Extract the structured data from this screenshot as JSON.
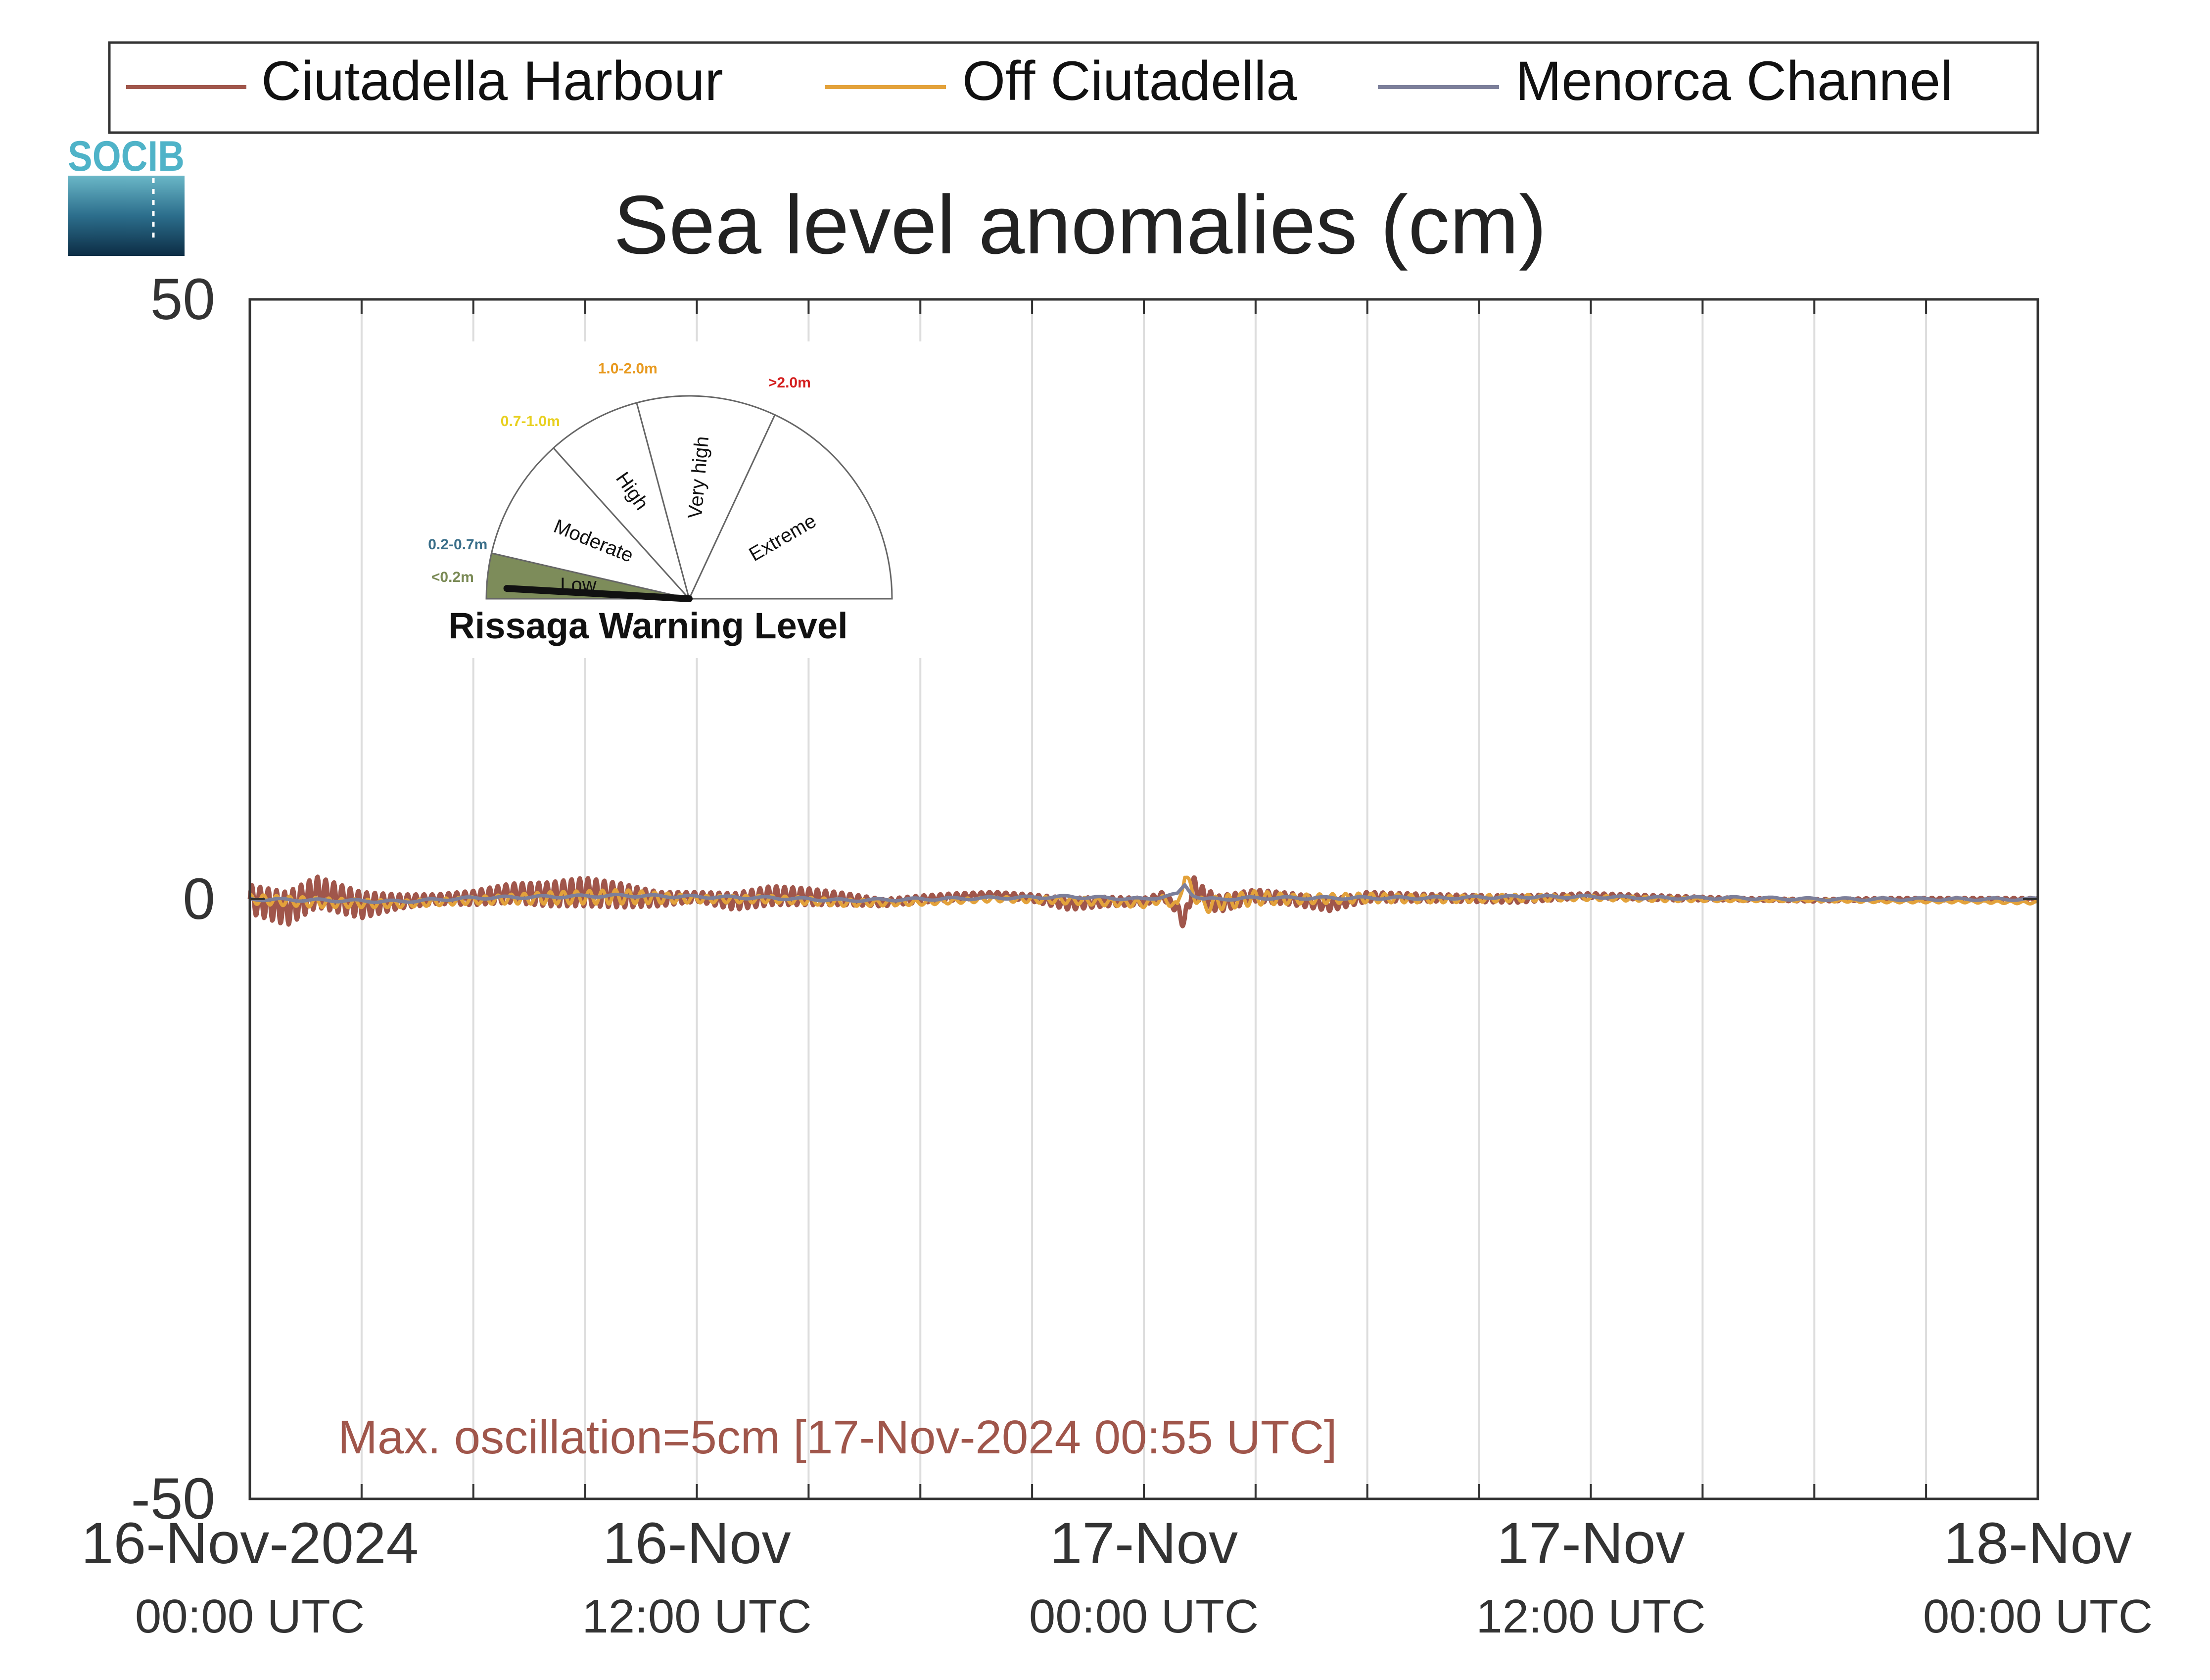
{
  "chart_data": {
    "type": "line",
    "title": "Sea level anomalies (cm)",
    "xlabel": "",
    "ylabel": "",
    "ylim": [
      -50,
      50
    ],
    "y_ticks": [
      50,
      0,
      -50
    ],
    "y_tick_labels": [
      "50",
      "0",
      "-50"
    ],
    "xlim": [
      "2024-11-16 00:00",
      "2024-11-18 00:00"
    ],
    "x_ticks": [
      {
        "t": 0,
        "date": "16-Nov-2024",
        "time": "00:00 UTC"
      },
      {
        "t": 12,
        "date": "16-Nov",
        "time": "12:00 UTC"
      },
      {
        "t": 24,
        "date": "17-Nov",
        "time": "00:00 UTC"
      },
      {
        "t": 36,
        "date": "17-Nov",
        "time": "12:00 UTC"
      },
      {
        "t": 48,
        "date": "18-Nov",
        "time": "00:00 UTC"
      }
    ],
    "grid": {
      "vertical": true,
      "horizontal": false
    },
    "legend_position": "top",
    "series": [
      {
        "name": "Ciutadella Harbour",
        "color": "#a0564b",
        "t": [
          0,
          1,
          1.8,
          3,
          4,
          5,
          6,
          7,
          8,
          9,
          10,
          11,
          12,
          13,
          14,
          15,
          16,
          17,
          18,
          19,
          20,
          21,
          22,
          23,
          24,
          24.5,
          24.9,
          25.1,
          25.3,
          25.6,
          26,
          27,
          28,
          29,
          30,
          32,
          34,
          36,
          38,
          40,
          42,
          44,
          46,
          48
        ],
        "y": [
          0,
          -0.8,
          0.6,
          -0.5,
          -0.2,
          0,
          0.1,
          0.5,
          0.4,
          0.6,
          0.3,
          0,
          0.2,
          -0.2,
          0.3,
          0.2,
          0,
          -0.3,
          0,
          0.2,
          0.4,
          0.1,
          -0.4,
          -0.2,
          -0.2,
          0.3,
          -0.8,
          -2,
          1.2,
          0.2,
          -0.4,
          0.3,
          0,
          -0.5,
          0.2,
          0.1,
          0,
          0.3,
          0.1,
          0,
          -0.1,
          0,
          0,
          0
        ],
        "amplitude": [
          1.2,
          1.4,
          1.3,
          1.1,
          0.6,
          0.4,
          0.6,
          0.8,
          1.0,
          1.2,
          1.0,
          0.6,
          0.4,
          0.7,
          0.8,
          0.7,
          0.5,
          0.3,
          0.3,
          0.3,
          0.2,
          0.3,
          0.5,
          0.4,
          0.3,
          0.3,
          0.4,
          0.8,
          0.8,
          0.8,
          0.7,
          0.5,
          0.5,
          0.5,
          0.4,
          0.3,
          0.3,
          0.2,
          0.2,
          0.1,
          0.1,
          0.1,
          0.1,
          0.1
        ]
      },
      {
        "name": "Off Ciutadella",
        "color": "#e3a23b",
        "t": [
          0,
          2,
          4,
          6,
          8,
          10,
          12,
          14,
          16,
          18,
          20,
          22,
          24,
          24.5,
          24.9,
          25.1,
          25.3,
          25.6,
          26,
          27,
          28,
          30,
          32,
          34,
          36,
          38,
          40,
          42,
          44,
          46,
          48
        ],
        "y": [
          0,
          -0.3,
          -0.4,
          -0.1,
          0.1,
          0.2,
          0,
          0,
          -0.3,
          -0.3,
          0,
          -0.1,
          -0.4,
          0,
          -0.6,
          2,
          0.6,
          -0.6,
          -0.3,
          0.1,
          0,
          0.1,
          0,
          0.1,
          0.1,
          0,
          -0.1,
          -0.1,
          -0.2,
          -0.2,
          -0.3
        ],
        "amplitude": [
          0.4,
          0.4,
          0.3,
          0.3,
          0.5,
          0.6,
          0.3,
          0.3,
          0.3,
          0.2,
          0.2,
          0.3,
          0.3,
          0.3,
          0.3,
          0.4,
          0.5,
          0.6,
          0.6,
          0.6,
          0.4,
          0.4,
          0.3,
          0.3,
          0.2,
          0.2,
          0.1,
          0.1,
          0.1,
          0.1,
          0.1
        ]
      },
      {
        "name": "Menorca Channel",
        "color": "#7c7f9a",
        "t": [
          0,
          2,
          4,
          6,
          8,
          10,
          12,
          14,
          16,
          18,
          20,
          22,
          24,
          24.5,
          24.9,
          25.1,
          25.3,
          25.6,
          26,
          27,
          28,
          30,
          32,
          34,
          36,
          38,
          40,
          42,
          44,
          46,
          48
        ],
        "y": [
          0,
          -0.1,
          -0.2,
          0.1,
          0.2,
          0.3,
          0.2,
          0.1,
          -0.1,
          0,
          0.1,
          0.2,
          0,
          0.2,
          0.4,
          1.2,
          0.4,
          0,
          0,
          0.1,
          0.1,
          0.1,
          0.1,
          0.2,
          0.2,
          0.1,
          0.1,
          0,
          0,
          0,
          0
        ],
        "amplitude": [
          0.1,
          0.1,
          0.1,
          0.1,
          0.1,
          0.1,
          0.1,
          0.1,
          0.1,
          0.1,
          0.1,
          0.1,
          0.1,
          0.1,
          0.1,
          0.1,
          0.1,
          0.1,
          0.1,
          0.1,
          0.1,
          0.1,
          0.1,
          0.1,
          0.1,
          0.1,
          0.1,
          0.1,
          0.1,
          0.1,
          0.1
        ]
      }
    ],
    "annotation": {
      "text": "Max. oscillation=5cm [17-Nov-2024 00:55 UTC]",
      "color": "#a0564b"
    },
    "logo": {
      "text": "SOCIB",
      "icon": "socib-logo"
    },
    "gauge": {
      "title": "Rissaga Warning Level",
      "value_m": 0.05,
      "needle_level": "Low",
      "sectors": [
        {
          "label": "Low",
          "range_label": "<0.2m",
          "range_color": "#7a8a55",
          "fill": "#7d8c5a"
        },
        {
          "label": "Moderate",
          "range_label": "0.2-0.7m",
          "range_color": "#3a6f8a",
          "fill": "#ffffff"
        },
        {
          "label": "High",
          "range_label": "0.7-1.0m",
          "range_color": "#e8d020",
          "fill": "#ffffff"
        },
        {
          "label": "Very high",
          "range_label": "1.0-2.0m",
          "range_color": "#e89a20",
          "fill": "#ffffff"
        },
        {
          "label": "Extreme",
          "range_label": ">2.0m",
          "range_color": "#d42020",
          "fill": "#ffffff"
        }
      ]
    }
  }
}
